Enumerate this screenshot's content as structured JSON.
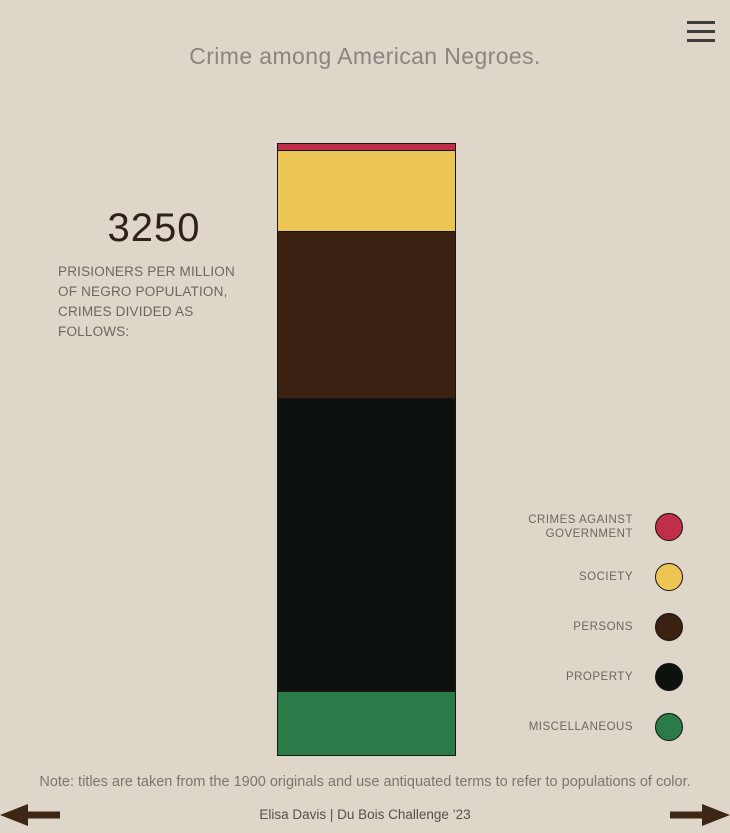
{
  "header": {
    "title": "Crime among American Negroes."
  },
  "stat": {
    "value": "3250",
    "description": "PRISIONERS PER MILLION OF NEGRO POPULATION, CRIMES DIVIDED AS FOLLOWS:"
  },
  "chart_data": {
    "type": "bar",
    "subtype": "single-stacked-column",
    "title": "Crime among American Negroes.",
    "total": 3250,
    "unit": "prisoners per million of negro population",
    "orientation": "vertical",
    "categories": [
      "CRIMES AGAINST GOVERNMENT",
      "SOCIETY",
      "PERSONS",
      "PROPERTY",
      "MISCELLANEOUS"
    ],
    "values": [
      30,
      430,
      890,
      1560,
      340
    ],
    "colors": [
      "#c02e48",
      "#edc554",
      "#3a2112",
      "#0e120e",
      "#2a7b48"
    ],
    "legend_position": "right"
  },
  "legend": {
    "items": [
      {
        "label": "CRIMES AGAINST GOVERNMENT",
        "color": "#c02e48"
      },
      {
        "label": "SOCIETY",
        "color": "#edc554"
      },
      {
        "label": "PERSONS",
        "color": "#3a2112"
      },
      {
        "label": "PROPERTY",
        "color": "#0e120e"
      },
      {
        "label": "MISCELLANEOUS",
        "color": "#2a7b48"
      }
    ]
  },
  "footer": {
    "note": "Note: titles are taken from the 1900 originals and use antiquated terms to refer to populations of color.",
    "credit": "Elisa Davis | Du Bois Challenge ’23"
  },
  "colors": {
    "background": "#ddd6c9",
    "arrow": "#3e2615",
    "menu_icon": "#3d3d3d",
    "bar_border": "#161616",
    "title_text": "#8a8580"
  }
}
